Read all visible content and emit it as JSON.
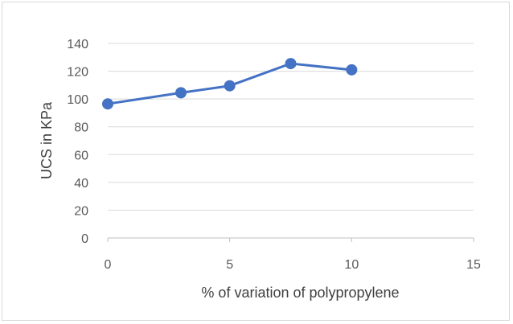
{
  "chart_data": {
    "type": "scatter",
    "xlabel": "% of variation of polypropylene",
    "ylabel": "UCS in KPa",
    "xlim": [
      0,
      15
    ],
    "ylim": [
      0,
      140
    ],
    "x_ticks": [
      "0",
      "5",
      "10",
      "15"
    ],
    "y_ticks": [
      "0",
      "20",
      "40",
      "60",
      "80",
      "100",
      "120",
      "140"
    ],
    "grid": "horizontal",
    "legend": "none",
    "series": [
      {
        "color": "#4472c4",
        "style": "line with markers",
        "points": [
          {
            "x": 0,
            "y": 96.5
          },
          {
            "x": 3,
            "y": 104.5
          },
          {
            "x": 5,
            "y": 109.5
          },
          {
            "x": 7.5,
            "y": 125.5
          },
          {
            "x": 10,
            "y": 121
          }
        ]
      }
    ]
  }
}
